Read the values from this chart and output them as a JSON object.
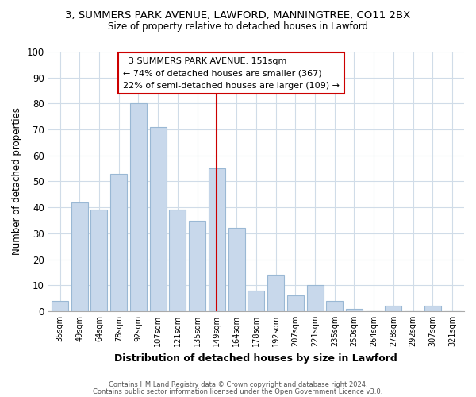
{
  "title_line1": "3, SUMMERS PARK AVENUE, LAWFORD, MANNINGTREE, CO11 2BX",
  "title_line2": "Size of property relative to detached houses in Lawford",
  "xlabel": "Distribution of detached houses by size in Lawford",
  "ylabel": "Number of detached properties",
  "categories": [
    "35sqm",
    "49sqm",
    "64sqm",
    "78sqm",
    "92sqm",
    "107sqm",
    "121sqm",
    "135sqm",
    "149sqm",
    "164sqm",
    "178sqm",
    "192sqm",
    "207sqm",
    "221sqm",
    "235sqm",
    "250sqm",
    "264sqm",
    "278sqm",
    "292sqm",
    "307sqm",
    "321sqm"
  ],
  "values": [
    4,
    42,
    39,
    53,
    80,
    71,
    39,
    35,
    55,
    32,
    8,
    14,
    6,
    10,
    4,
    1,
    0,
    2,
    0,
    2,
    0
  ],
  "bar_color": "#c8d8eb",
  "bar_edge_color": "#9ab8d4",
  "vline_color": "#cc0000",
  "annotation_title": "3 SUMMERS PARK AVENUE: 151sqm",
  "annotation_line2": "← 74% of detached houses are smaller (367)",
  "annotation_line3": "22% of semi-detached houses are larger (109) →",
  "annotation_box_edge_color": "#cc0000",
  "ylim": [
    0,
    100
  ],
  "footer_line1": "Contains HM Land Registry data © Crown copyright and database right 2024.",
  "footer_line2": "Contains public sector information licensed under the Open Government Licence v3.0.",
  "background_color": "#ffffff",
  "plot_background_color": "#ffffff",
  "grid_color": "#d0dce8"
}
